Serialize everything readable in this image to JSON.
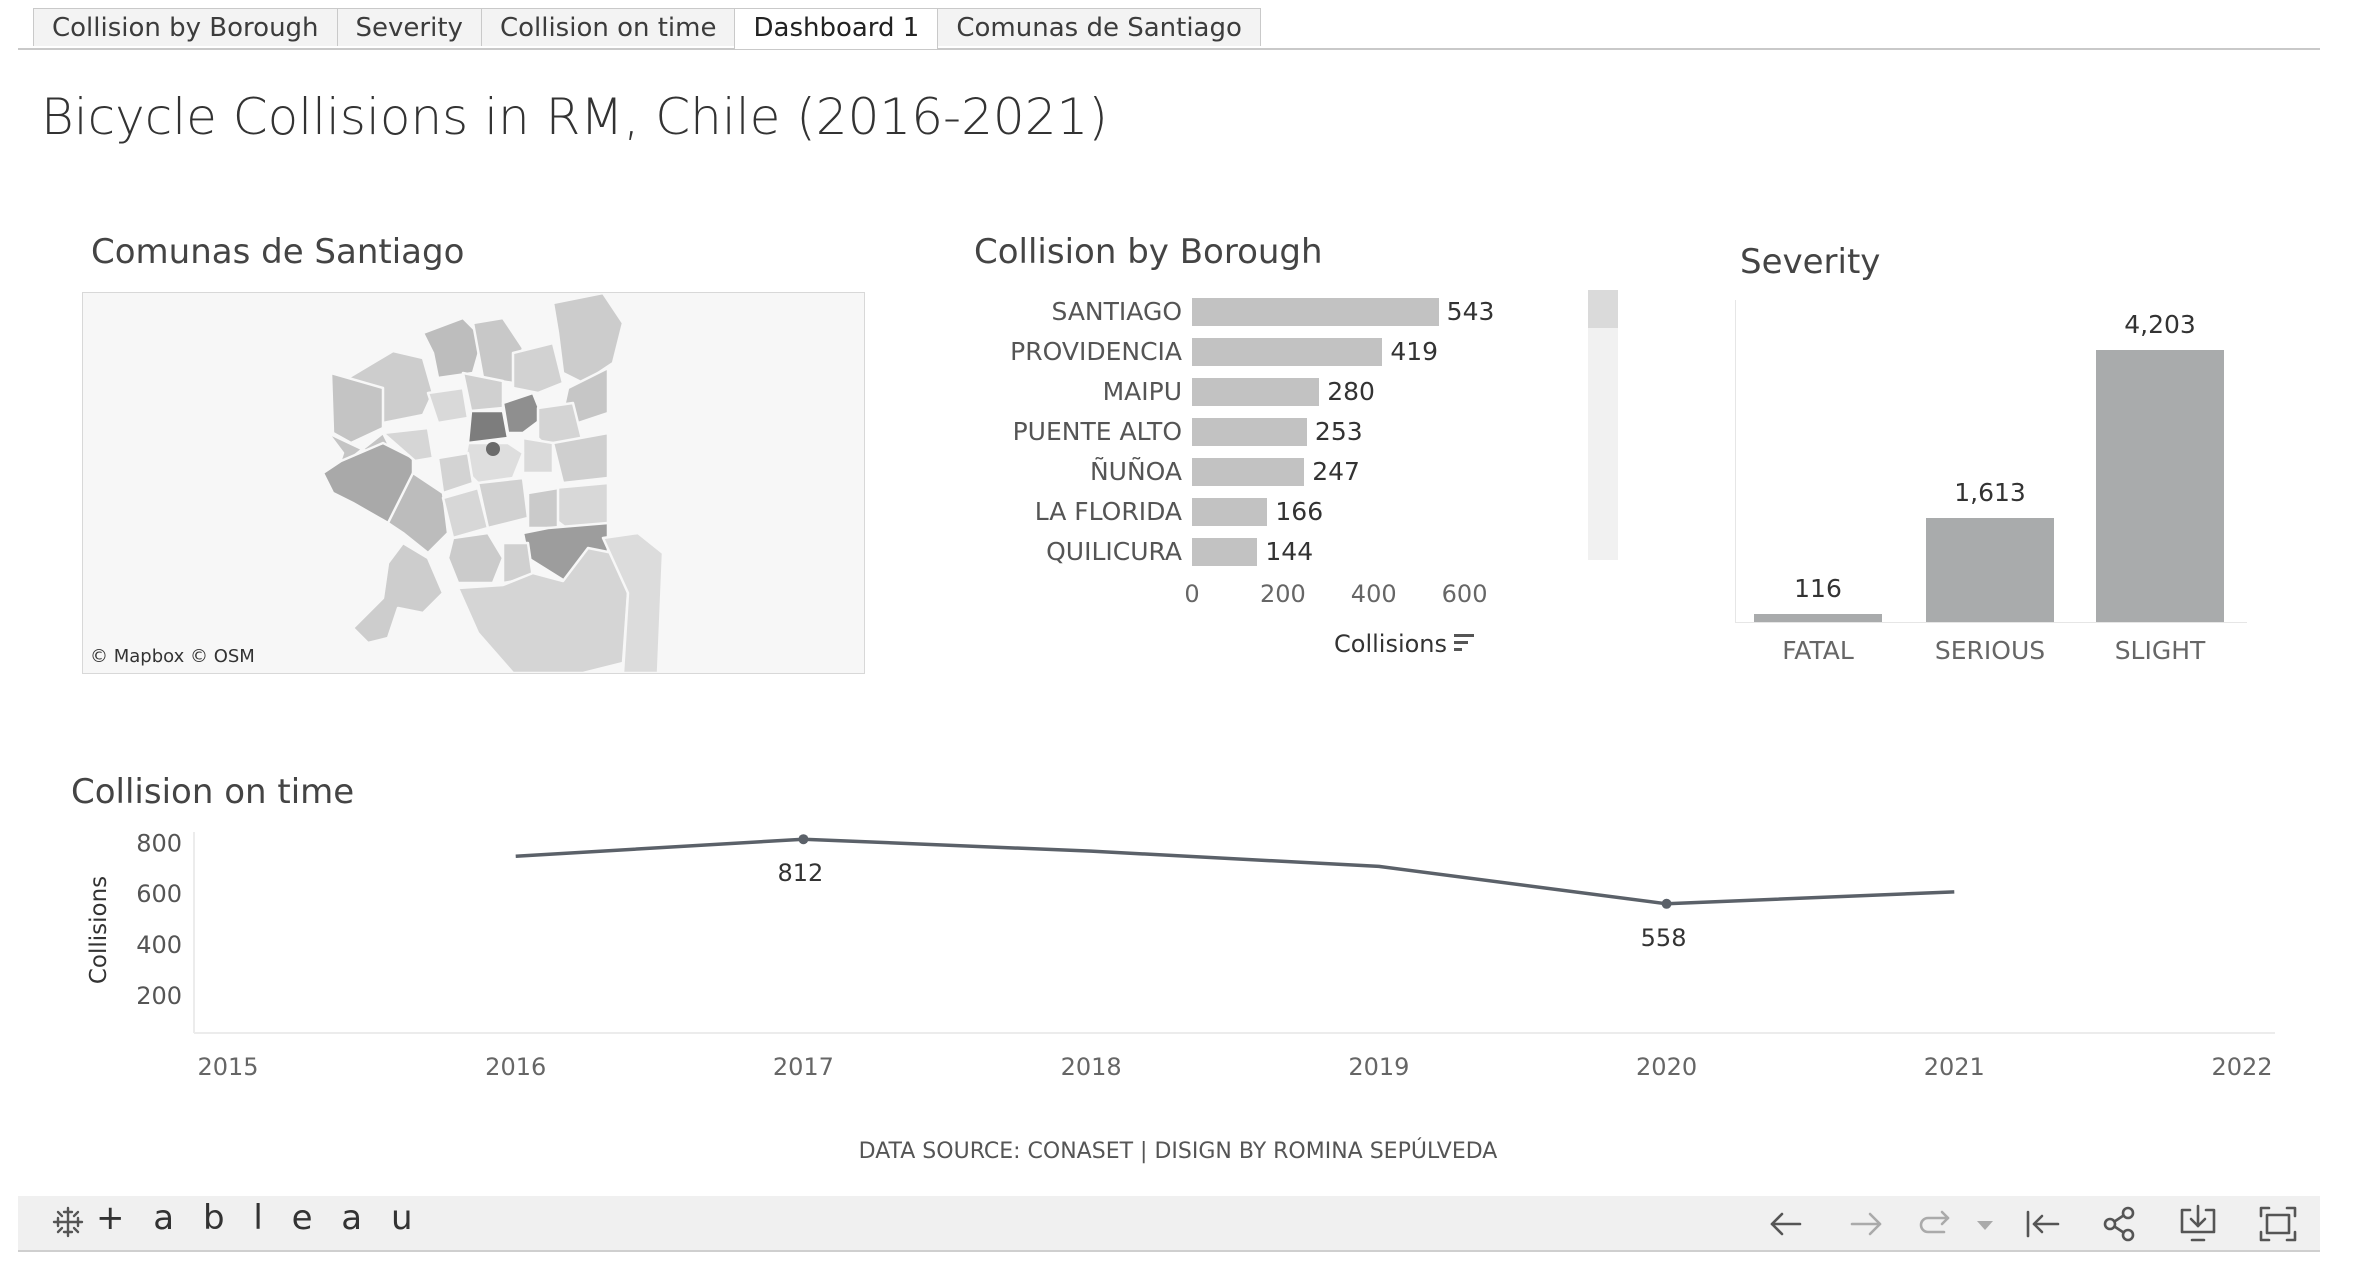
{
  "tabs": [
    {
      "label": "Collision by Borough",
      "active": false
    },
    {
      "label": "Severity",
      "active": false
    },
    {
      "label": "Collision on time",
      "active": false
    },
    {
      "label": "Dashboard 1",
      "active": true
    },
    {
      "label": "Comunas de Santiago",
      "active": false
    }
  ],
  "dashboard": {
    "title": "Bicycle Collisions in RM, Chile (2016-2021)",
    "footer": "DATA SOURCE: CONASET | DISIGN BY ROMINA SEPÚLVEDA"
  },
  "map": {
    "title": "Comunas de Santiago",
    "attribution": "© Mapbox  © OSM"
  },
  "chart_data": [
    {
      "type": "bar",
      "orientation": "horizontal",
      "title": "Collision by Borough",
      "categories": [
        "SANTIAGO",
        "PROVIDENCIA",
        "MAIPU",
        "PUENTE ALTO",
        "ÑUÑOA",
        "LA FLORIDA",
        "QUILICURA"
      ],
      "values": [
        543,
        419,
        280,
        253,
        247,
        166,
        144
      ],
      "value_labels": [
        "543",
        "419",
        "280",
        "253",
        "247",
        "166",
        "144"
      ],
      "xlabel": "Collisions",
      "xticks": [
        "0",
        "200",
        "400",
        "600"
      ],
      "xlim": [
        0,
        700
      ],
      "color": "#c2c2c2"
    },
    {
      "type": "bar",
      "title": "Severity",
      "categories": [
        "FATAL",
        "SERIOUS",
        "SLIGHT"
      ],
      "values": [
        116,
        1613,
        4203
      ],
      "value_labels": [
        "116",
        "1,613",
        "4,203"
      ],
      "ylim": [
        0,
        4203
      ],
      "color": "#a9abac"
    },
    {
      "type": "line",
      "title": "Collision on time",
      "x": [
        2016,
        2017,
        2018,
        2019,
        2020,
        2021
      ],
      "values": [
        745,
        812,
        765,
        705,
        558,
        605
      ],
      "annotations": [
        {
          "x": 2017,
          "label": "812"
        },
        {
          "x": 2020,
          "label": "558"
        }
      ],
      "ylabel": "Collisions",
      "yticks": [
        "200",
        "400",
        "600",
        "800"
      ],
      "xticks": [
        "2015",
        "2016",
        "2017",
        "2018",
        "2019",
        "2020",
        "2021",
        "2022"
      ],
      "xlim": [
        2015,
        2022
      ],
      "ylim": [
        50,
        860
      ],
      "color": "#5b6169"
    }
  ],
  "toolbar": {
    "logo": "+ a b l e a u",
    "icons": [
      "undo-icon",
      "redo-icon",
      "revert-icon",
      "revert-menu-icon",
      "reset-icon",
      "share-icon",
      "download-icon",
      "fullscreen-icon"
    ]
  }
}
